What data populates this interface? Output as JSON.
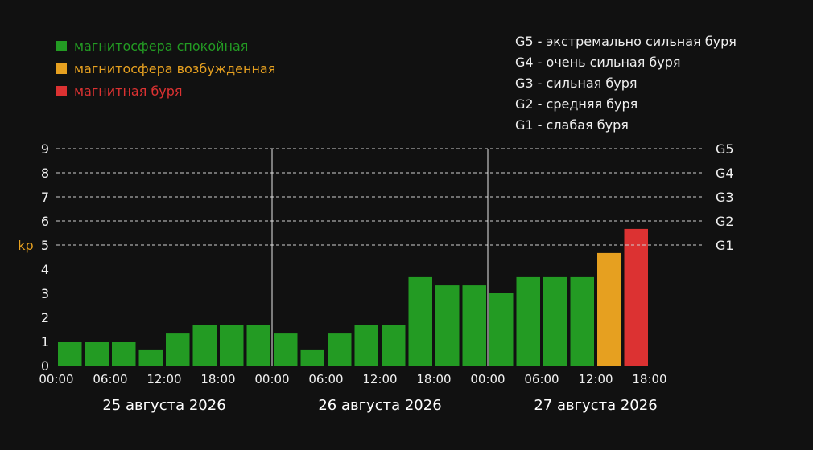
{
  "colors": {
    "background": "#111111",
    "quiet": "#239b23",
    "excited": "#e6a020",
    "storm": "#dc3232",
    "axis_text": "#f0f0f0",
    "kp_label": "#e6a020"
  },
  "legend": [
    {
      "label": "магнитосфера спокойная",
      "color": "#239b23"
    },
    {
      "label": "магнитосфера возбужденная",
      "color": "#e6a020"
    },
    {
      "label": "магнитная буря",
      "color": "#dc3232"
    }
  ],
  "g_levels": [
    "G5 - экстремально сильная буря",
    "G4 - очень сильная буря",
    "G3 - сильная буря",
    "G2 - средняя буря",
    "G1 - слабая буря"
  ],
  "chart_data": {
    "type": "bar",
    "title": "",
    "ylabel": "kp",
    "xlabel": "",
    "ylim": [
      0,
      9
    ],
    "yticks": [
      0,
      1,
      2,
      3,
      4,
      5,
      6,
      7,
      8,
      9
    ],
    "grid": "dashed horizontal lines at 5-9",
    "right_axis_labels": [
      {
        "value": 5,
        "label": "G1"
      },
      {
        "value": 6,
        "label": "G2"
      },
      {
        "value": 7,
        "label": "G3"
      },
      {
        "value": 8,
        "label": "G4"
      },
      {
        "value": 9,
        "label": "G5"
      }
    ],
    "x_tick_labels": [
      "00:00",
      "06:00",
      "12:00",
      "18:00",
      "00:00",
      "06:00",
      "12:00",
      "18:00",
      "00:00",
      "06:00",
      "12:00",
      "18:00"
    ],
    "days": [
      "25 августа 2026",
      "26 августа 2026",
      "27 августа 2026"
    ],
    "slots_per_day": 8,
    "values": [
      1.0,
      1.0,
      1.0,
      0.67,
      1.33,
      1.67,
      1.67,
      1.67,
      1.33,
      0.67,
      1.33,
      1.67,
      1.67,
      3.67,
      3.33,
      3.33,
      3.0,
      3.67,
      3.67,
      3.67,
      4.67,
      5.67
    ],
    "status": [
      "quiet",
      "quiet",
      "quiet",
      "quiet",
      "quiet",
      "quiet",
      "quiet",
      "quiet",
      "quiet",
      "quiet",
      "quiet",
      "quiet",
      "quiet",
      "quiet",
      "quiet",
      "quiet",
      "quiet",
      "quiet",
      "quiet",
      "quiet",
      "excited",
      "storm"
    ]
  }
}
